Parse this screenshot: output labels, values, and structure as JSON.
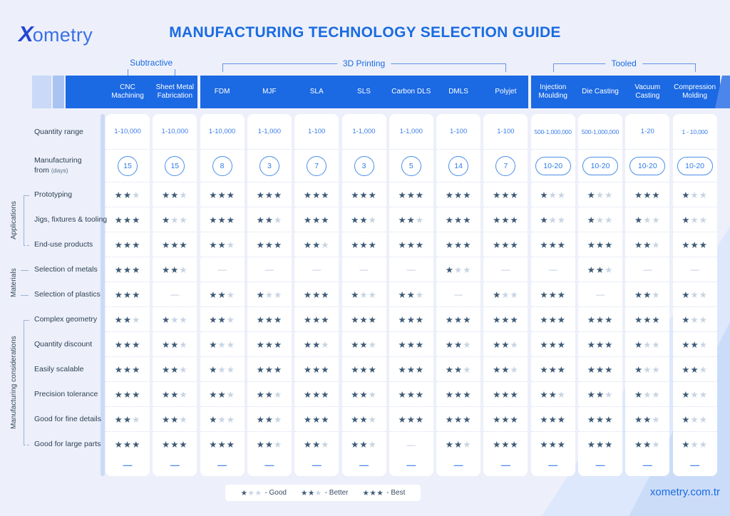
{
  "header": {
    "logo_x": "X",
    "logo_rest": "ometry",
    "title": "MANUFACTURING TECHNOLOGY SELECTION GUIDE"
  },
  "chart_data": {
    "type": "table",
    "title": "MANUFACTURING TECHNOLOGY SELECTION GUIDE",
    "column_groups": [
      {
        "label": "Subtractive",
        "from": 0,
        "to": 1,
        "bracket": false
      },
      {
        "label": "3D Printing",
        "from": 2,
        "to": 8,
        "bracket": true
      },
      {
        "label": "Tooled",
        "from": 9,
        "to": 12,
        "bracket": true
      }
    ],
    "columns": [
      "CNC Machining",
      "Sheet Metal Fabrication",
      "FDM",
      "MJF",
      "SLA",
      "SLS",
      "Carbon DLS",
      "DMLS",
      "Polyjet",
      "Injection Moulding",
      "Die Casting",
      "Vacuum Casting",
      "Compression Molding"
    ],
    "quantity_range": {
      "label": "Quantity range",
      "values": [
        "1-10,000",
        "1-10,000",
        "1-10,000",
        "1-1,000",
        "1-100",
        "1-1,000",
        "1-1,000",
        "1-100",
        "1-100",
        "500-1,000,000",
        "500-1,000,000",
        "1-20",
        "1 - 10,000"
      ]
    },
    "manufacturing_days": {
      "label_line1": "Manufacturing",
      "label_line2": "from",
      "label_small": "(days)",
      "values": [
        "15",
        "15",
        "8",
        "3",
        "7",
        "3",
        "5",
        "14",
        "7",
        "10-20",
        "10-20",
        "10-20",
        "10-20"
      ]
    },
    "rating_scale": {
      "max_stars": 3,
      "none_symbol": "—"
    },
    "rating_groups": [
      {
        "label": "Applications",
        "rows": [
          {
            "label": "Prototyping",
            "stars": [
              2,
              2,
              3,
              3,
              3,
              3,
              3,
              3,
              3,
              1,
              1,
              3,
              1
            ]
          },
          {
            "label": "Jigs, fixtures & tooling",
            "stars": [
              3,
              1,
              3,
              2,
              3,
              2,
              2,
              3,
              3,
              1,
              1,
              1,
              1
            ]
          },
          {
            "label": "End-use products",
            "stars": [
              3,
              3,
              2,
              3,
              2,
              3,
              3,
              3,
              3,
              3,
              3,
              2,
              3
            ]
          }
        ]
      },
      {
        "label": "Materials",
        "rows": [
          {
            "label": "Selection of metals",
            "stars": [
              3,
              2,
              0,
              0,
              0,
              0,
              0,
              1,
              0,
              0,
              2,
              0,
              0
            ]
          },
          {
            "label": "Selection of plastics",
            "stars": [
              3,
              0,
              2,
              1,
              3,
              1,
              2,
              0,
              1,
              3,
              0,
              2,
              1
            ]
          }
        ]
      },
      {
        "label": "Manufacturing considerations",
        "rows": [
          {
            "label": "Complex geometry",
            "stars": [
              2,
              1,
              2,
              3,
              3,
              3,
              3,
              3,
              3,
              3,
              3,
              3,
              1
            ]
          },
          {
            "label": "Quantity discount",
            "stars": [
              3,
              2,
              1,
              3,
              2,
              2,
              3,
              2,
              2,
              3,
              3,
              1,
              2
            ]
          },
          {
            "label": "Easily scalable",
            "stars": [
              3,
              2,
              1,
              3,
              3,
              3,
              3,
              2,
              2,
              3,
              3,
              1,
              2
            ]
          },
          {
            "label": "Precision tolerance",
            "stars": [
              3,
              2,
              2,
              2,
              3,
              2,
              3,
              3,
              3,
              2,
              2,
              1,
              1
            ]
          },
          {
            "label": "Good for fine details",
            "stars": [
              2,
              2,
              1,
              2,
              3,
              2,
              3,
              3,
              3,
              3,
              3,
              2,
              1
            ]
          },
          {
            "label": "Good for large parts",
            "stars": [
              3,
              3,
              3,
              2,
              2,
              2,
              0,
              2,
              3,
              3,
              3,
              2,
              1
            ]
          }
        ]
      }
    ]
  },
  "legend": {
    "items": [
      {
        "filled": 1,
        "label": "- Good"
      },
      {
        "filled": 2,
        "label": "- Better"
      },
      {
        "filled": 3,
        "label": "- Best"
      }
    ]
  },
  "footer": {
    "website": "xometry.com.tr"
  },
  "icons": {
    "star": "★",
    "dash": "—",
    "bottom_dash": "—"
  },
  "colors": {
    "primary_blue": "#1a6be2",
    "header_bar_blue": "#1b69e3",
    "star_filled": "#3d5a76",
    "star_empty": "#c8d4e3",
    "value_blue": "#3a7de8",
    "badge_border_blue": "#4a8ee9"
  }
}
